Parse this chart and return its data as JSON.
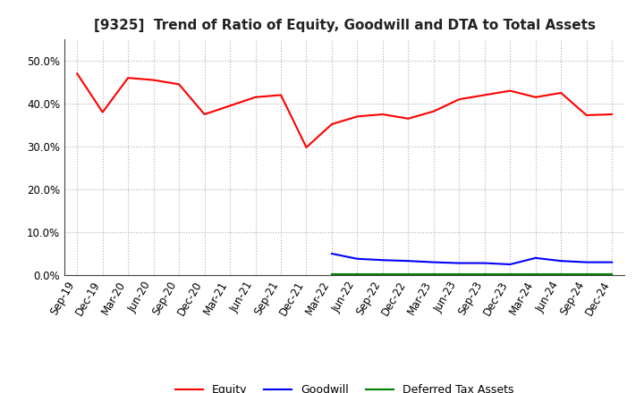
{
  "title": "[9325]  Trend of Ratio of Equity, Goodwill and DTA to Total Assets",
  "x_labels": [
    "Sep-19",
    "Dec-19",
    "Mar-20",
    "Jun-20",
    "Sep-20",
    "Dec-20",
    "Mar-21",
    "Jun-21",
    "Sep-21",
    "Dec-21",
    "Mar-22",
    "Jun-22",
    "Sep-22",
    "Dec-22",
    "Mar-23",
    "Jun-23",
    "Sep-23",
    "Dec-23",
    "Mar-24",
    "Jun-24",
    "Sep-24",
    "Dec-24"
  ],
  "equity": [
    0.47,
    0.38,
    0.46,
    0.455,
    0.445,
    0.375,
    0.395,
    0.415,
    0.42,
    0.298,
    0.352,
    0.37,
    0.375,
    0.365,
    0.382,
    0.41,
    0.42,
    0.43,
    0.415,
    0.425,
    0.373,
    0.375
  ],
  "goodwill": [
    null,
    null,
    null,
    null,
    null,
    null,
    null,
    null,
    null,
    null,
    0.05,
    0.038,
    0.035,
    0.033,
    0.03,
    0.028,
    0.028,
    0.025,
    0.04,
    0.033,
    0.03,
    0.03
  ],
  "dta": [
    null,
    null,
    null,
    null,
    null,
    null,
    null,
    null,
    null,
    null,
    0.003,
    0.003,
    0.003,
    0.003,
    0.003,
    0.003,
    0.003,
    0.003,
    0.003,
    0.003,
    0.003,
    0.003
  ],
  "equity_color": "#ff0000",
  "goodwill_color": "#0000ff",
  "dta_color": "#008000",
  "bg_color": "#ffffff",
  "grid_color": "#b0b0b0",
  "ylim": [
    0.0,
    0.55
  ],
  "yticks": [
    0.0,
    0.1,
    0.2,
    0.3,
    0.4,
    0.5
  ],
  "title_fontsize": 11,
  "tick_fontsize": 8.5,
  "legend_fontsize": 9
}
